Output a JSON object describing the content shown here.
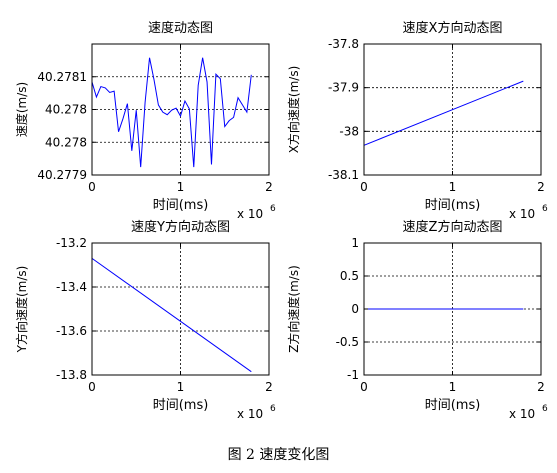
{
  "figure": {
    "caption": "图 2 速度变化图"
  },
  "chart_data": [
    {
      "type": "line",
      "title": "速度动态图",
      "xlabel": "时间(ms)",
      "ylabel": "速度(m/s)",
      "x_exponent": "x 10",
      "x_exponent_power": "6",
      "xlim": [
        0,
        2
      ],
      "ylim": [
        40.2779,
        40.2781
      ],
      "xticks": [
        "0",
        "1",
        "2"
      ],
      "yticks": [
        "40.2779",
        "40.278",
        "40.278",
        "40.2781"
      ],
      "ytick_values": [
        40.2779,
        40.27795,
        40.278,
        40.27805
      ],
      "grid": true,
      "color": "#0000ff",
      "x": [
        0,
        0.05,
        0.1,
        0.15,
        0.2,
        0.25,
        0.3,
        0.35,
        0.4,
        0.45,
        0.5,
        0.55,
        0.6,
        0.65,
        0.7,
        0.75,
        0.8,
        0.85,
        0.9,
        0.95,
        1.0,
        1.05,
        1.1,
        1.15,
        1.2,
        1.25,
        1.3,
        1.35,
        1.4,
        1.45,
        1.5,
        1.55,
        1.6,
        1.65,
        1.7,
        1.75,
        1.8
      ],
      "y": [
        40.278042,
        40.278019,
        40.278035,
        40.278033,
        40.278026,
        40.278028,
        40.277966,
        40.277986,
        40.278009,
        40.277937,
        40.277999,
        40.277912,
        40.278011,
        40.278079,
        40.278046,
        40.278007,
        40.277996,
        40.277992,
        40.277999,
        40.278002,
        40.27799,
        40.278013,
        40.278001,
        40.277912,
        40.278037,
        40.278079,
        40.278042,
        40.277916,
        40.278054,
        40.278047,
        40.277974,
        40.277983,
        40.277988,
        40.278018,
        40.278007,
        40.277996,
        40.278053
      ]
    },
    {
      "type": "line",
      "title": "速度X方向动态图",
      "xlabel": "时间(ms)",
      "ylabel": "X方向速度(m/s)",
      "x_exponent": "x 10",
      "x_exponent_power": "6",
      "xlim": [
        0,
        2
      ],
      "ylim": [
        -38.1,
        -37.8
      ],
      "xticks": [
        "0",
        "1",
        "2"
      ],
      "yticks": [
        "-38.1",
        "-38",
        "-37.9",
        "-37.8"
      ],
      "ytick_values": [
        -38.1,
        -38.0,
        -37.9,
        -37.8
      ],
      "grid": true,
      "color": "#0000ff",
      "x": [
        0,
        1.8
      ],
      "y": [
        -38.032,
        -37.885
      ]
    },
    {
      "type": "line",
      "title": "速度Y方向动态图",
      "xlabel": "时间(ms)",
      "ylabel": "Y方向速度(m/s)",
      "x_exponent": "x 10",
      "x_exponent_power": "6",
      "xlim": [
        0,
        2
      ],
      "ylim": [
        -13.8,
        -13.2
      ],
      "xticks": [
        "0",
        "1",
        "2"
      ],
      "yticks": [
        "-13.8",
        "-13.6",
        "-13.4",
        "-13.2"
      ],
      "ytick_values": [
        -13.8,
        -13.6,
        -13.4,
        -13.2
      ],
      "grid": true,
      "color": "#0000ff",
      "x": [
        0,
        1.8
      ],
      "y": [
        -13.27,
        -13.785
      ]
    },
    {
      "type": "line",
      "title": "速度Z方向动态图",
      "xlabel": "时间(ms)",
      "ylabel": "Z方向速度(m/s)",
      "x_exponent": "x 10",
      "x_exponent_power": "6",
      "xlim": [
        0,
        2
      ],
      "ylim": [
        -1,
        1
      ],
      "xticks": [
        "0",
        "1",
        "2"
      ],
      "yticks": [
        "-1",
        "-0.5",
        "0",
        "0.5",
        "1"
      ],
      "ytick_values": [
        -1,
        -0.5,
        0,
        0.5,
        1
      ],
      "grid": true,
      "color": "#0000ff",
      "x": [
        0,
        1.8
      ],
      "y": [
        0,
        0
      ]
    }
  ]
}
